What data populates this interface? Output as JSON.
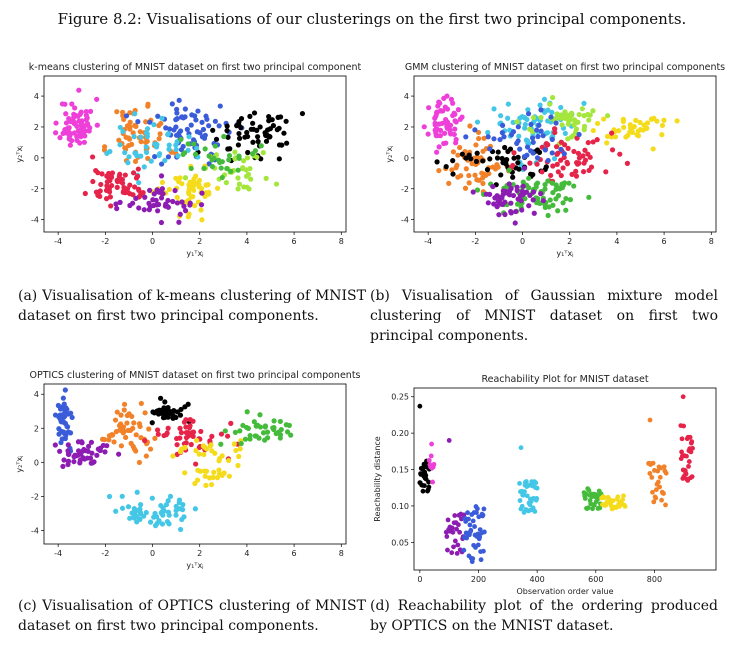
{
  "figure_caption": "Figure 8.2: Visualisations of our clusterings on the first two principal components.",
  "colors": {
    "magenta": "#ee3fd9",
    "blue": "#3a5cd9",
    "orange": "#f2822a",
    "black": "#000000",
    "cyan": "#44c7e6",
    "red": "#e6244a",
    "green": "#44bb3b",
    "lime": "#a4e63c",
    "yellow": "#f4dc1c",
    "purple": "#8c1cb2",
    "pink": "#ff3a8a"
  },
  "captions": {
    "a": "(a) Visualisation of k-means clustering of MNIST dataset on first two principal components.",
    "b": "(b) Visualisation of Gaussian mixture model clustering of MNIST dataset on first two principal components.",
    "c": "(c) Visualisation of OPTICS clustering of MNIST dataset on first two principal components.",
    "d": "(d) Reachability plot of the ordering produced by OPTICS on the MNIST dataset."
  },
  "chart_data": [
    {
      "id": "a",
      "type": "scatter",
      "title": "k-means clustering of MNIST dataset on first two principal component",
      "xlabel": "y₁ᵀxⱼ",
      "ylabel": "y₂ᵀxⱼ",
      "xlim": [
        -4.6,
        8.2
      ],
      "ylim": [
        -4.8,
        5.3
      ],
      "xticks": [
        -4,
        -2,
        0,
        2,
        4,
        6,
        8
      ],
      "yticks": [
        -4,
        -2,
        0,
        2,
        4
      ],
      "series": [
        {
          "color": "magenta",
          "center": [
            -3.2,
            2.2
          ],
          "spread": [
            0.45,
            1.0
          ],
          "n": 70
        },
        {
          "color": "orange",
          "center": [
            -0.6,
            1.4
          ],
          "spread": [
            0.8,
            1.3
          ],
          "n": 55
        },
        {
          "color": "blue",
          "center": [
            1.6,
            1.8
          ],
          "spread": [
            1.2,
            1.3
          ],
          "n": 70
        },
        {
          "color": "black",
          "center": [
            4.3,
            1.6
          ],
          "spread": [
            1.1,
            0.9
          ],
          "n": 60
        },
        {
          "color": "cyan",
          "center": [
            0.0,
            0.8
          ],
          "spread": [
            1.1,
            1.0
          ],
          "n": 45
        },
        {
          "color": "red",
          "center": [
            -1.4,
            -1.8
          ],
          "spread": [
            0.8,
            0.8
          ],
          "n": 60
        },
        {
          "color": "yellow",
          "center": [
            1.5,
            -2.0
          ],
          "spread": [
            0.9,
            1.0
          ],
          "n": 50
        },
        {
          "color": "lime",
          "center": [
            3.5,
            -0.7
          ],
          "spread": [
            1.0,
            1.0
          ],
          "n": 35
        },
        {
          "color": "green",
          "center": [
            2.6,
            0.3
          ],
          "spread": [
            0.9,
            0.9
          ],
          "n": 30
        },
        {
          "color": "purple",
          "center": [
            0.2,
            -2.9
          ],
          "spread": [
            1.0,
            0.7
          ],
          "n": 45
        }
      ]
    },
    {
      "id": "b",
      "type": "scatter",
      "title": "GMM clustering of MNIST dataset on first two principal components",
      "xlabel": "y₁ᵀxⱼ",
      "ylabel": "y₂ᵀxⱼ",
      "xlim": [
        -4.6,
        8.2
      ],
      "ylim": [
        -4.8,
        5.3
      ],
      "xticks": [
        -4,
        -2,
        0,
        2,
        4,
        6,
        8
      ],
      "yticks": [
        -4,
        -2,
        0,
        2,
        4
      ],
      "series": [
        {
          "color": "magenta",
          "center": [
            -3.3,
            2.2
          ],
          "spread": [
            0.4,
            0.9
          ],
          "n": 60
        },
        {
          "color": "orange",
          "center": [
            -2.2,
            -0.4
          ],
          "spread": [
            0.8,
            1.0
          ],
          "n": 60
        },
        {
          "color": "cyan",
          "center": [
            0.5,
            2.1
          ],
          "spread": [
            1.2,
            1.2
          ],
          "n": 70
        },
        {
          "color": "lime",
          "center": [
            1.8,
            2.4
          ],
          "spread": [
            1.0,
            0.9
          ],
          "n": 45
        },
        {
          "color": "yellow",
          "center": [
            4.6,
            1.9
          ],
          "spread": [
            1.0,
            0.6
          ],
          "n": 40
        },
        {
          "color": "black",
          "center": [
            -0.8,
            -0.2
          ],
          "spread": [
            1.2,
            0.8
          ],
          "n": 45
        },
        {
          "color": "red",
          "center": [
            1.8,
            -0.1
          ],
          "spread": [
            1.4,
            0.9
          ],
          "n": 60
        },
        {
          "color": "green",
          "center": [
            0.4,
            -2.3
          ],
          "spread": [
            1.3,
            0.9
          ],
          "n": 75
        },
        {
          "color": "purple",
          "center": [
            -0.6,
            -2.7
          ],
          "spread": [
            0.8,
            0.8
          ],
          "n": 55
        },
        {
          "color": "blue",
          "center": [
            -0.1,
            1.0
          ],
          "spread": [
            1.2,
            1.0
          ],
          "n": 40
        }
      ]
    },
    {
      "id": "c",
      "type": "scatter",
      "title": "OPTICS clustering of MNIST dataset on first two principal components",
      "xlabel": "y₁ᵀxⱼ",
      "ylabel": "y₂ᵀxⱼ",
      "xlim": [
        -4.6,
        8.2
      ],
      "ylim": [
        -4.8,
        4.6
      ],
      "xticks": [
        -4,
        -2,
        0,
        2,
        4,
        6,
        8
      ],
      "yticks": [
        -4,
        -2,
        0,
        2,
        4
      ],
      "series": [
        {
          "color": "blue",
          "center": [
            -3.7,
            2.5
          ],
          "spread": [
            0.22,
            0.9
          ],
          "n": 50
        },
        {
          "color": "purple",
          "center": [
            -2.9,
            0.5
          ],
          "spread": [
            0.7,
            0.45
          ],
          "n": 45
        },
        {
          "color": "orange",
          "center": [
            -1.1,
            1.8
          ],
          "spread": [
            0.7,
            0.9
          ],
          "n": 50
        },
        {
          "color": "black",
          "center": [
            0.6,
            2.9
          ],
          "spread": [
            0.6,
            0.4
          ],
          "n": 35
        },
        {
          "color": "red",
          "center": [
            1.6,
            1.5
          ],
          "spread": [
            1.0,
            0.7
          ],
          "n": 50
        },
        {
          "color": "yellow",
          "center": [
            2.5,
            0.1
          ],
          "spread": [
            0.9,
            1.0
          ],
          "n": 45
        },
        {
          "color": "green",
          "center": [
            4.6,
            1.8
          ],
          "spread": [
            1.2,
            0.6
          ],
          "n": 40
        },
        {
          "color": "cyan",
          "center": [
            0.0,
            -2.9
          ],
          "spread": [
            1.0,
            0.7
          ],
          "n": 60
        }
      ]
    },
    {
      "id": "d",
      "type": "scatter",
      "title": "Reachability Plot for MNIST dataset",
      "xlabel": "Observation order value",
      "ylabel": "Reachability distance",
      "xlim": [
        -20,
        1010
      ],
      "ylim": [
        0.012,
        0.262
      ],
      "xticks": [
        0,
        200,
        400,
        600,
        800
      ],
      "yticks": [
        0.05,
        0.1,
        0.15,
        0.2,
        0.25
      ],
      "xtick_labels": [
        "0",
        "200",
        "400",
        "600",
        "800"
      ],
      "ytick_labels": [
        "0.05",
        "0.10",
        "0.15",
        "0.20",
        "0.25"
      ],
      "segments": [
        {
          "color": "black",
          "x": [
            0,
            32
          ],
          "y_low": 0.12,
          "y_high": 0.165,
          "n": 28,
          "extra": [
            [
              0,
              0.237
            ]
          ]
        },
        {
          "color": "magenta",
          "x": [
            32,
            48
          ],
          "y_low": 0.13,
          "y_high": 0.17,
          "n": 8,
          "extra": [
            [
              40,
              0.185
            ]
          ]
        },
        {
          "color": "purple",
          "x": [
            90,
            150
          ],
          "y_low": 0.03,
          "y_high": 0.09,
          "n": 30,
          "extra": [
            [
              100,
              0.19
            ]
          ]
        },
        {
          "color": "blue",
          "x": [
            150,
            220
          ],
          "y_low": 0.02,
          "y_high": 0.1,
          "n": 45,
          "extra": []
        },
        {
          "color": "cyan",
          "x": [
            340,
            400
          ],
          "y_low": 0.09,
          "y_high": 0.135,
          "n": 40,
          "extra": [
            [
              345,
              0.18
            ]
          ]
        },
        {
          "color": "green",
          "x": [
            560,
            620
          ],
          "y_low": 0.095,
          "y_high": 0.125,
          "n": 30,
          "extra": []
        },
        {
          "color": "yellow",
          "x": [
            620,
            700
          ],
          "y_low": 0.095,
          "y_high": 0.115,
          "n": 30,
          "extra": []
        },
        {
          "color": "orange",
          "x": [
            780,
            840
          ],
          "y_low": 0.1,
          "y_high": 0.16,
          "n": 28,
          "extra": [
            [
              785,
              0.218
            ]
          ]
        },
        {
          "color": "red",
          "x": [
            890,
            930
          ],
          "y_low": 0.12,
          "y_high": 0.215,
          "n": 30,
          "extra": [
            [
              898,
              0.25
            ]
          ]
        }
      ]
    }
  ]
}
